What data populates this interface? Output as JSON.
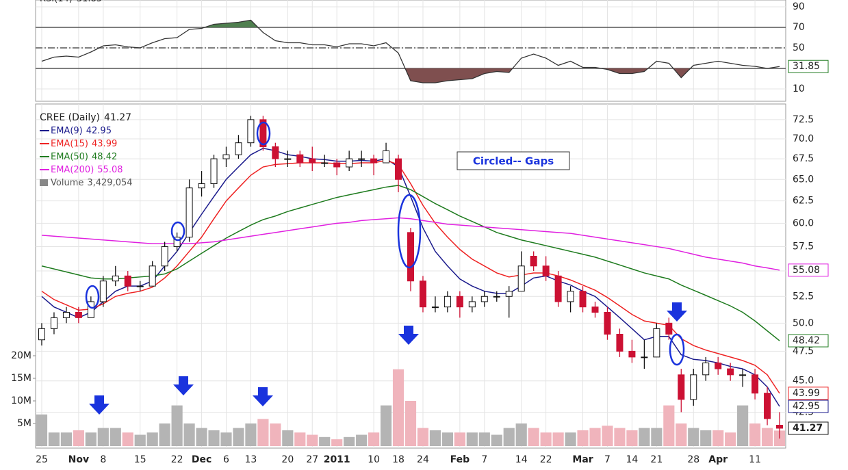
{
  "chart_data": [
    {
      "type": "line",
      "title": "RSI(14)",
      "color": "#333333",
      "values": [
        37,
        41,
        42,
        41,
        46,
        52,
        53,
        51,
        50,
        55,
        59,
        60,
        68,
        69,
        73,
        74,
        75,
        77,
        65,
        57,
        55,
        55,
        53,
        53,
        51,
        54,
        54,
        52,
        55,
        45,
        18,
        16,
        16,
        18,
        19,
        20,
        25,
        27,
        26,
        40,
        44,
        40,
        33,
        37,
        31,
        31,
        29,
        25,
        25,
        27,
        37,
        35,
        21,
        33,
        35,
        37,
        35,
        33,
        32,
        30,
        31.85
      ],
      "ylim": [
        0,
        95
      ],
      "yticks": [
        90,
        70,
        50,
        10
      ],
      "levels": [
        {
          "value": 70,
          "style": "solid"
        },
        {
          "value": 50,
          "style": "dashdot"
        },
        {
          "value": 30,
          "style": "solid"
        }
      ],
      "overbought_color": "#4f7f4f",
      "oversold_color": "#7f4f4f",
      "grid": true
    },
    {
      "type": "candlestick",
      "title": "CREE (Daily)",
      "log_scale": true,
      "grid": true,
      "up_color": "#ffffff",
      "down_color": "#cc1133",
      "categories": [
        "25",
        null,
        null,
        "Nov",
        null,
        "8",
        null,
        null,
        "15",
        null,
        null,
        "22",
        null,
        "Dec",
        null,
        "6",
        null,
        "13",
        null,
        null,
        "20",
        null,
        "27",
        null,
        "2011",
        null,
        null,
        "10",
        null,
        "18",
        null,
        "24",
        null,
        null,
        "Feb",
        null,
        "7",
        null,
        null,
        "14",
        null,
        "22",
        null,
        null,
        "Mar",
        null,
        "7",
        null,
        "14",
        null,
        "21",
        null,
        null,
        "28",
        null,
        "Apr",
        null,
        null,
        "11",
        null,
        null
      ],
      "ohlc": [
        [
          48.5,
          50,
          48,
          49.5
        ],
        [
          49.5,
          51,
          49,
          50.5
        ],
        [
          50.5,
          51.5,
          50,
          51
        ],
        [
          51,
          51.5,
          50,
          50.5
        ],
        [
          50.5,
          52.5,
          50.5,
          52
        ],
        [
          52,
          54.5,
          51.5,
          54
        ],
        [
          54,
          55.5,
          53.5,
          54.5
        ],
        [
          54.5,
          55,
          53,
          53.5
        ],
        [
          53.5,
          54,
          53,
          53.5
        ],
        [
          53.5,
          56,
          53.5,
          55.5
        ],
        [
          55.5,
          58,
          55,
          57.5
        ],
        [
          57.5,
          59,
          57,
          58.5
        ],
        [
          58.5,
          65,
          58,
          64
        ],
        [
          64,
          66,
          63,
          64.5
        ],
        [
          64.5,
          68,
          64,
          67.5
        ],
        [
          67.5,
          69,
          66.5,
          68
        ],
        [
          68,
          70.5,
          67.5,
          69.5
        ],
        [
          69.5,
          73,
          69,
          72.5
        ],
        [
          72.5,
          73,
          68.5,
          69
        ],
        [
          69,
          69.5,
          66.5,
          67.5
        ],
        [
          67.5,
          68.5,
          66.5,
          67.5
        ],
        [
          68,
          68.5,
          66.5,
          67
        ],
        [
          67.5,
          69,
          66,
          67
        ],
        [
          67,
          68,
          66.5,
          67
        ],
        [
          67,
          67.5,
          65.5,
          66.5
        ],
        [
          66.5,
          68.5,
          66,
          67.5
        ],
        [
          67.5,
          68.5,
          66.5,
          67.5
        ],
        [
          67.5,
          68,
          65.5,
          67
        ],
        [
          67,
          69.5,
          67,
          68.5
        ],
        [
          67.5,
          68,
          63.5,
          65
        ],
        [
          59,
          59.5,
          53,
          54
        ],
        [
          54,
          54.5,
          51,
          51.5
        ],
        [
          51.5,
          52.5,
          51,
          51.5
        ],
        [
          51.5,
          53,
          51,
          52.5
        ],
        [
          52.5,
          53,
          50.5,
          51.5
        ],
        [
          51.5,
          52.5,
          51,
          52
        ],
        [
          52,
          53,
          51.5,
          52.5
        ],
        [
          52.5,
          53,
          52,
          52.5
        ],
        [
          52.5,
          53.5,
          50.5,
          53
        ],
        [
          53,
          57,
          53,
          55.5
        ],
        [
          56.5,
          57,
          55,
          55.5
        ],
        [
          55.5,
          56.5,
          54,
          54.5
        ],
        [
          54.5,
          55,
          51.5,
          52
        ],
        [
          52,
          53.5,
          51,
          53
        ],
        [
          53,
          53.5,
          51,
          51.5
        ],
        [
          51.5,
          52,
          50.5,
          51
        ],
        [
          51,
          51.5,
          48.5,
          49
        ],
        [
          49,
          49.5,
          47,
          47.5
        ],
        [
          47.5,
          48.5,
          46.5,
          47
        ],
        [
          47,
          48.5,
          46,
          47
        ],
        [
          47,
          50,
          47,
          49.5
        ],
        [
          50,
          50.5,
          48.5,
          49
        ],
        [
          45.5,
          46,
          42.5,
          43.5
        ],
        [
          43.5,
          46,
          43,
          45.5
        ],
        [
          45.5,
          47,
          45,
          46.5
        ],
        [
          46.5,
          47,
          45.5,
          46
        ],
        [
          46,
          46.5,
          45,
          45.5
        ],
        [
          45.5,
          46,
          44.5,
          45.5
        ],
        [
          45.5,
          46,
          43.5,
          44
        ],
        [
          44,
          44.5,
          41.5,
          42
        ],
        [
          41.5,
          42.5,
          40.5,
          41.27
        ]
      ],
      "ylim": [
        39.8,
        74.6
      ],
      "yticks": [
        {
          "value": 42.5,
          "label": "42.5"
        },
        {
          "value": 45,
          "label": "45.0"
        },
        47.5,
        {
          "value": 50,
          "label": "50.0"
        },
        52.5,
        {
          "value": 55,
          "label": "55.0"
        },
        57.5,
        {
          "value": 60,
          "label": "60.0"
        },
        62.5,
        {
          "value": 65,
          "label": "65.0"
        },
        67.5,
        {
          "value": 70,
          "label": "70.0"
        },
        72.5
      ],
      "series": [
        {
          "name": "EMA(9)",
          "color": "#1a1a8c",
          "values": [
            52.5,
            51.5,
            51,
            50.5,
            51,
            52,
            53,
            53.5,
            53.5,
            54,
            55.5,
            57,
            59,
            61,
            63,
            65,
            66.5,
            68,
            68.8,
            68.5,
            68,
            67.8,
            67.5,
            67.4,
            67.2,
            67.2,
            67.3,
            67.2,
            67.5,
            66.5,
            63,
            59.5,
            57,
            55.5,
            54.2,
            53.5,
            53,
            52.8,
            52.8,
            53.5,
            54.3,
            54.5,
            54,
            53.6,
            53,
            52.5,
            51.5,
            50.5,
            49.5,
            48.5,
            48.8,
            48.8,
            47.2,
            46.8,
            46.7,
            46.5,
            46.2,
            46,
            45.5,
            44.5,
            42.95
          ]
        },
        {
          "name": "EMA(15)",
          "color": "#ee2222",
          "values": [
            53,
            52.2,
            51.7,
            51.2,
            51.3,
            51.8,
            52.5,
            52.8,
            53,
            53.4,
            54.3,
            55.5,
            57,
            58.5,
            60.5,
            62.5,
            64,
            65.5,
            66.5,
            66.8,
            66.9,
            67,
            67,
            67,
            66.9,
            66.9,
            67,
            67,
            67.3,
            66.8,
            64.5,
            62,
            60,
            58.5,
            57.2,
            56.2,
            55.5,
            54.8,
            54.4,
            54.6,
            54.8,
            54.8,
            54.5,
            54.1,
            53.6,
            53.1,
            52.4,
            51.6,
            50.8,
            50.2,
            50,
            49.8,
            48.6,
            48,
            47.6,
            47.3,
            47,
            46.7,
            46.3,
            45.5,
            43.99
          ]
        },
        {
          "name": "EMA(50)",
          "color": "#1e7b1e",
          "values": [
            55.5,
            55.2,
            54.9,
            54.6,
            54.3,
            54.2,
            54.2,
            54.3,
            54.4,
            54.5,
            54.7,
            55.2,
            56,
            56.8,
            57.6,
            58.4,
            59.1,
            59.8,
            60.4,
            60.8,
            61.3,
            61.7,
            62.1,
            62.5,
            62.9,
            63.2,
            63.5,
            63.8,
            64.1,
            64.3,
            63.8,
            63,
            62.2,
            61.5,
            60.8,
            60.2,
            59.6,
            59,
            58.6,
            58.2,
            57.9,
            57.6,
            57.3,
            57,
            56.7,
            56.4,
            56,
            55.6,
            55.2,
            54.8,
            54.5,
            54.2,
            53.6,
            53.1,
            52.6,
            52.1,
            51.6,
            51,
            50.2,
            49.3,
            48.42
          ]
        },
        {
          "name": "EMA(200)",
          "color": "#e020e0",
          "values": [
            58.7,
            58.6,
            58.5,
            58.4,
            58.3,
            58.2,
            58.1,
            58,
            57.9,
            57.8,
            57.8,
            57.8,
            57.8,
            57.9,
            58,
            58.2,
            58.4,
            58.6,
            58.8,
            59,
            59.2,
            59.4,
            59.6,
            59.8,
            60,
            60.1,
            60.3,
            60.4,
            60.5,
            60.6,
            60.5,
            60.3,
            60.1,
            59.9,
            59.8,
            59.7,
            59.6,
            59.5,
            59.4,
            59.3,
            59.2,
            59.1,
            59,
            58.9,
            58.7,
            58.5,
            58.3,
            58.1,
            57.9,
            57.7,
            57.5,
            57.3,
            57,
            56.7,
            56.4,
            56.2,
            56,
            55.8,
            55.5,
            55.3,
            55.08
          ]
        }
      ],
      "volume": {
        "name": "Volume",
        "up_color": "#b4b4b4",
        "down_color": "#f0b4bc",
        "values": [
          7000000,
          3000000,
          3000000,
          3500000,
          3000000,
          4000000,
          4000000,
          3000000,
          2500000,
          3000000,
          5000000,
          9000000,
          5000000,
          4000000,
          3500000,
          3000000,
          4000000,
          5000000,
          6000000,
          5000000,
          3500000,
          3000000,
          2500000,
          2000000,
          1500000,
          2000000,
          2500000,
          3000000,
          9000000,
          17000000,
          10000000,
          4000000,
          3500000,
          3000000,
          3000000,
          3000000,
          3000000,
          2500000,
          4000000,
          5000000,
          4000000,
          3000000,
          3000000,
          3000000,
          3500000,
          4000000,
          4500000,
          4000000,
          3500000,
          4000000,
          4000000,
          9000000,
          5000000,
          4000000,
          3500000,
          3500000,
          3000000,
          9000000,
          5000000,
          4000000,
          3429054
        ],
        "value_labels": [
          null,
          null,
          null,
          null,
          null,
          null,
          null,
          null,
          null,
          null,
          null,
          null,
          null,
          null,
          null,
          null,
          null,
          null,
          null,
          null,
          null,
          null,
          null,
          null,
          null,
          null,
          null,
          null,
          null,
          null,
          null,
          null,
          null,
          null,
          null,
          null,
          null,
          null,
          null,
          null,
          null,
          null,
          null,
          null,
          null,
          null,
          null,
          null,
          null,
          null,
          null,
          null,
          null,
          null,
          null,
          null,
          null,
          null,
          null,
          null,
          "3,429,054"
        ],
        "ylim": [
          0,
          30000000
        ],
        "yticks": [
          {
            "value": 5000000,
            "label": "5M"
          },
          {
            "value": 10000000,
            "label": "10M"
          },
          {
            "value": 15000000,
            "label": "15M"
          },
          {
            "value": 20000000,
            "label": "20M"
          }
        ]
      },
      "annotation": "Circled-- Gaps"
    }
  ]
}
